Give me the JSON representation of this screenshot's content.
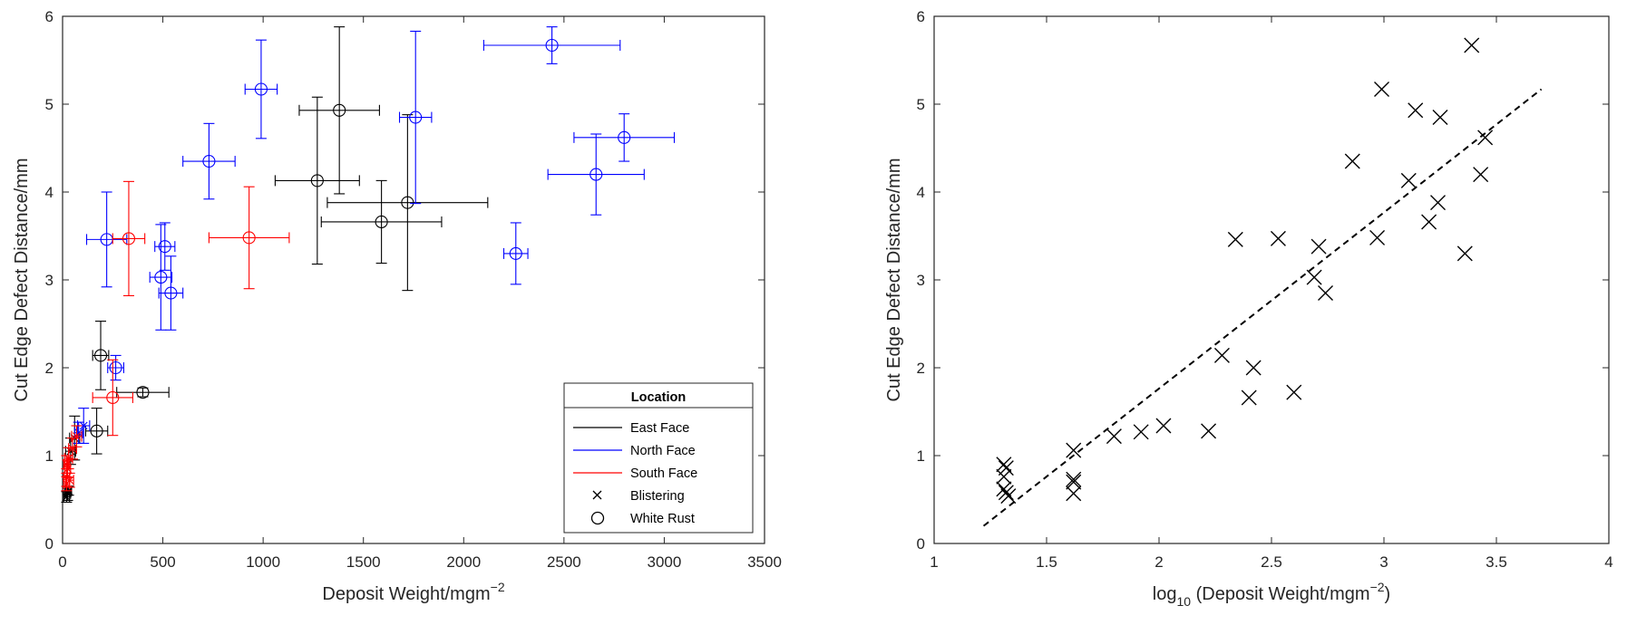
{
  "charts": [
    {
      "type": "scatter",
      "xlabel": "Deposit Weight/mgm",
      "xlabel_sup": "−2",
      "ylabel": "Cut Edge Defect Distance/mm",
      "xlim": [
        0,
        3500
      ],
      "ylim": [
        0,
        6
      ],
      "xticks": [
        "0",
        "500",
        "1000",
        "1500",
        "2000",
        "2500",
        "3000",
        "3500"
      ],
      "yticks": [
        "0",
        "1",
        "2",
        "3",
        "4",
        "5",
        "6"
      ],
      "legend": {
        "title": "Location",
        "placement": "bottom-right",
        "entries": [
          "East Face",
          "North Face",
          "South Face",
          "Blistering",
          "White Rust"
        ]
      },
      "colors": {
        "east": "#000000",
        "north": "#0000ff",
        "south": "#ff0000"
      },
      "series": [
        {
          "name": "East Face",
          "color_key": "east",
          "marker": "o",
          "points": [
            {
              "x": 1380,
              "y": 4.93,
              "xerr": 200,
              "yerr": 0.95
            },
            {
              "x": 1270,
              "y": 4.13,
              "xerr": 210,
              "yerr": 0.95
            },
            {
              "x": 1720,
              "y": 3.88,
              "xerr": 400,
              "yerr": 1.0
            },
            {
              "x": 1590,
              "y": 3.66,
              "xerr": 300,
              "yerr": 0.47
            },
            {
              "x": 190,
              "y": 2.14,
              "xerr": 40,
              "yerr": 0.39
            },
            {
              "x": 400,
              "y": 1.72,
              "xerr": 130,
              "yerr": 0.05
            },
            {
              "x": 170,
              "y": 1.28,
              "xerr": 55,
              "yerr": 0.26
            }
          ]
        },
        {
          "name": "North Face",
          "color_key": "north",
          "marker": "o",
          "points": [
            {
              "x": 2440,
              "y": 5.67,
              "xerr": 340,
              "yerr": 0.21
            },
            {
              "x": 990,
              "y": 5.17,
              "xerr": 80,
              "yerr": 0.56
            },
            {
              "x": 1760,
              "y": 4.85,
              "xerr": 80,
              "yerr": 0.98
            },
            {
              "x": 2800,
              "y": 4.62,
              "xerr": 250,
              "yerr": 0.27
            },
            {
              "x": 730,
              "y": 4.35,
              "xerr": 130,
              "yerr": 0.43
            },
            {
              "x": 2660,
              "y": 4.2,
              "xerr": 240,
              "yerr": 0.46
            },
            {
              "x": 220,
              "y": 3.46,
              "xerr": 100,
              "yerr": 0.54
            },
            {
              "x": 510,
              "y": 3.38,
              "xerr": 50,
              "yerr": 0.27
            },
            {
              "x": 2260,
              "y": 3.3,
              "xerr": 60,
              "yerr": 0.35
            },
            {
              "x": 490,
              "y": 3.03,
              "xerr": 55,
              "yerr": 0.6
            },
            {
              "x": 540,
              "y": 2.85,
              "xerr": 60,
              "yerr": 0.42
            },
            {
              "x": 265,
              "y": 2.0,
              "xerr": 40,
              "yerr": 0.14
            }
          ]
        },
        {
          "name": "South Face",
          "color_key": "south",
          "marker": "o",
          "points": [
            {
              "x": 330,
              "y": 3.47,
              "xerr": 80,
              "yerr": 0.65
            },
            {
              "x": 930,
              "y": 3.48,
              "xerr": 200,
              "yerr": 0.58
            },
            {
              "x": 250,
              "y": 1.66,
              "xerr": 100,
              "yerr": 0.43
            }
          ]
        },
        {
          "name": "East Face",
          "color_key": "east",
          "marker": "x",
          "points": [
            {
              "x": 60,
              "y": 1.2,
              "xerr": 25,
              "yerr": 0.25
            },
            {
              "x": 40,
              "y": 1.05,
              "xerr": 25,
              "yerr": 0.15
            },
            {
              "x": 25,
              "y": 0.57,
              "xerr": 15,
              "yerr": 0.08
            },
            {
              "x": 20,
              "y": 0.53,
              "xerr": 15,
              "yerr": 0.06
            },
            {
              "x": 30,
              "y": 0.6,
              "xerr": 15,
              "yerr": 0.05
            }
          ]
        },
        {
          "name": "North Face",
          "color_key": "north",
          "marker": "x",
          "points": [
            {
              "x": 105,
              "y": 1.34,
              "xerr": 30,
              "yerr": 0.2
            },
            {
              "x": 80,
              "y": 1.26,
              "xerr": 20,
              "yerr": 0.12
            }
          ]
        },
        {
          "name": "South Face",
          "color_key": "south",
          "marker": "x",
          "points": [
            {
              "x": 70,
              "y": 1.22,
              "xerr": 25,
              "yerr": 0.12
            },
            {
              "x": 50,
              "y": 1.08,
              "xerr": 20,
              "yerr": 0.12
            },
            {
              "x": 30,
              "y": 0.97,
              "xerr": 20,
              "yerr": 0.12
            },
            {
              "x": 20,
              "y": 0.9,
              "xerr": 15,
              "yerr": 0.1
            },
            {
              "x": 25,
              "y": 0.85,
              "xerr": 15,
              "yerr": 0.1
            },
            {
              "x": 20,
              "y": 0.75,
              "xerr": 15,
              "yerr": 0.1
            },
            {
              "x": 35,
              "y": 0.72,
              "xerr": 20,
              "yerr": 0.08
            },
            {
              "x": 20,
              "y": 0.68,
              "xerr": 15,
              "yerr": 0.08
            }
          ]
        }
      ]
    },
    {
      "type": "scatter",
      "xlabel": "log",
      "xlabel_sub": "10",
      "xlabel_rest": " (Deposit Weight/mgm",
      "xlabel_sup": "−2",
      "xlabel_end": ")",
      "ylabel": "Cut Edge Defect Distance/mm",
      "xlim": [
        1,
        4
      ],
      "ylim": [
        0,
        6
      ],
      "xticks": [
        "1",
        "1.5",
        "2",
        "2.5",
        "3",
        "3.5",
        "4"
      ],
      "yticks": [
        "0",
        "1",
        "2",
        "3",
        "4",
        "5",
        "6"
      ],
      "fit_line": {
        "x": [
          1.22,
          3.7
        ],
        "y": [
          0.2,
          5.17
        ]
      },
      "points": [
        {
          "x": 1.31,
          "y": 0.9
        },
        {
          "x": 1.32,
          "y": 0.86
        },
        {
          "x": 1.31,
          "y": 0.62
        },
        {
          "x": 1.32,
          "y": 0.58
        },
        {
          "x": 1.33,
          "y": 0.54
        },
        {
          "x": 1.31,
          "y": 0.76
        },
        {
          "x": 1.62,
          "y": 1.06
        },
        {
          "x": 1.62,
          "y": 0.73
        },
        {
          "x": 1.62,
          "y": 0.7
        },
        {
          "x": 1.62,
          "y": 0.57
        },
        {
          "x": 1.8,
          "y": 1.22
        },
        {
          "x": 1.92,
          "y": 1.27
        },
        {
          "x": 2.02,
          "y": 1.34
        },
        {
          "x": 2.22,
          "y": 1.28
        },
        {
          "x": 2.28,
          "y": 2.14
        },
        {
          "x": 2.34,
          "y": 3.46
        },
        {
          "x": 2.4,
          "y": 1.66
        },
        {
          "x": 2.42,
          "y": 2.0
        },
        {
          "x": 2.53,
          "y": 3.47
        },
        {
          "x": 2.6,
          "y": 1.72
        },
        {
          "x": 2.69,
          "y": 3.03
        },
        {
          "x": 2.71,
          "y": 3.38
        },
        {
          "x": 2.74,
          "y": 2.85
        },
        {
          "x": 2.86,
          "y": 4.35
        },
        {
          "x": 2.97,
          "y": 3.48
        },
        {
          "x": 2.99,
          "y": 5.17
        },
        {
          "x": 3.11,
          "y": 4.13
        },
        {
          "x": 3.14,
          "y": 4.93
        },
        {
          "x": 3.2,
          "y": 3.66
        },
        {
          "x": 3.24,
          "y": 3.88
        },
        {
          "x": 3.25,
          "y": 4.85
        },
        {
          "x": 3.36,
          "y": 3.3
        },
        {
          "x": 3.39,
          "y": 5.67
        },
        {
          "x": 3.43,
          "y": 4.2
        },
        {
          "x": 3.45,
          "y": 4.62
        }
      ]
    }
  ]
}
